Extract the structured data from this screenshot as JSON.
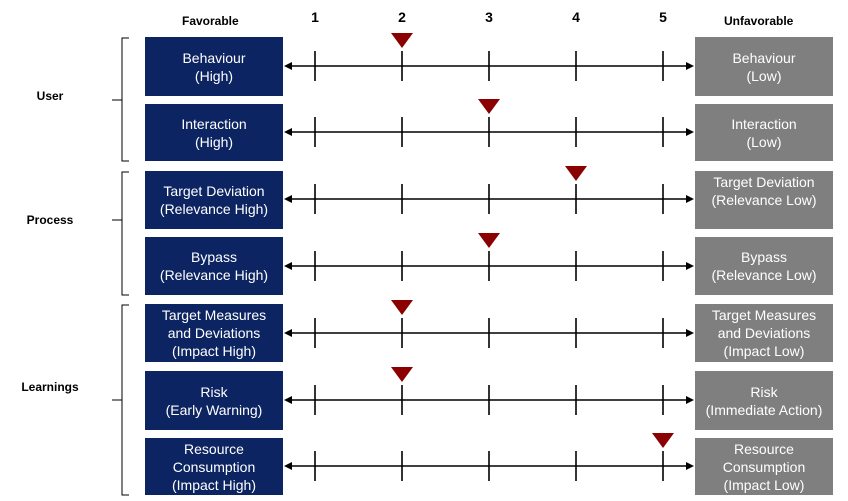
{
  "headers": {
    "favorable": "Favorable",
    "unfavorable": "Unfavorable"
  },
  "scale_labels": [
    "1",
    "2",
    "3",
    "4",
    "5"
  ],
  "groups": [
    {
      "label": "User",
      "rows": [
        0,
        1
      ]
    },
    {
      "label": "Process",
      "rows": [
        2,
        3
      ]
    },
    {
      "label": "Learnings",
      "rows": [
        4,
        5,
        6
      ]
    }
  ],
  "rows": [
    {
      "favorable": "Behaviour\n(High)",
      "unfavorable": "Behaviour\n(Low)",
      "marker": 2
    },
    {
      "favorable": "Interaction\n(High)",
      "unfavorable": "Interaction\n(Low)",
      "marker": 3
    },
    {
      "favorable": "Target Deviation\n(Relevance High)",
      "unfavorable": "Target Deviation\n(Relevance Low)",
      "marker": 4
    },
    {
      "favorable": "Bypass\n(Relevance High)",
      "unfavorable": "Bypass\n(Relevance Low)",
      "marker": 3
    },
    {
      "favorable": "Target Measures\nand Deviations\n(Impact High)",
      "unfavorable": "Target Measures\nand Deviations\n(Impact Low)",
      "marker": 2
    },
    {
      "favorable": "Risk\n(Early Warning)",
      "unfavorable": "Risk\n(Immediate Action)",
      "marker": 2
    },
    {
      "favorable": "Resource\nConsumption\n(Impact High)",
      "unfavorable": "Resource\nConsumption\n(Impact Low)",
      "marker": 5
    }
  ],
  "colors": {
    "favorable_box": "#0c2461",
    "unfavorable_box": "#7f7f7f",
    "marker": "#8b0000"
  }
}
